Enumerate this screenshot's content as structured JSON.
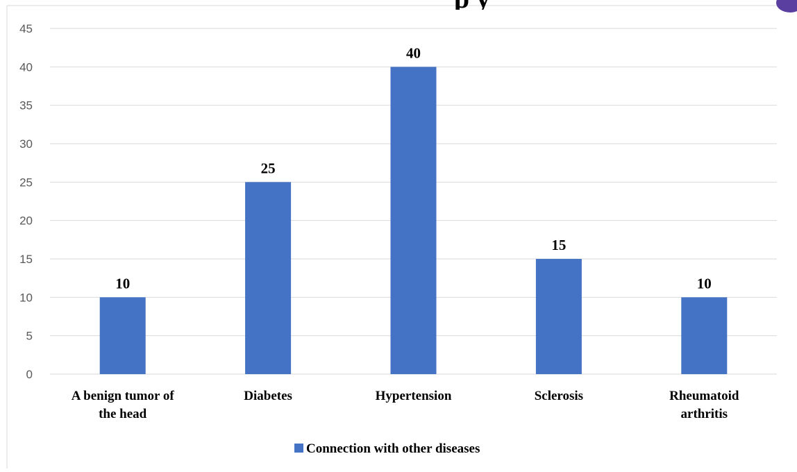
{
  "chart_data": {
    "type": "bar",
    "title_fragment": "p     y",
    "categories": [
      "A benign tumor of the head",
      "Diabetes",
      "Hypertension",
      "Sclerosis",
      "Rheumatoid arthritis"
    ],
    "category_lines": [
      [
        "A benign tumor of",
        "the head"
      ],
      [
        "Diabetes"
      ],
      [
        "Hypertension"
      ],
      [
        "Sclerosis"
      ],
      [
        "Rheumatoid",
        "arthritis"
      ]
    ],
    "series": [
      {
        "name": "Connection with other diseases",
        "values": [
          10,
          25,
          40,
          15,
          10
        ],
        "color": "#4472C4"
      }
    ],
    "ylim": [
      0,
      45
    ],
    "yticks": [
      0,
      5,
      10,
      15,
      20,
      25,
      30,
      35,
      40,
      45
    ],
    "grid": true,
    "legend_position": "bottom",
    "data_labels": true
  }
}
